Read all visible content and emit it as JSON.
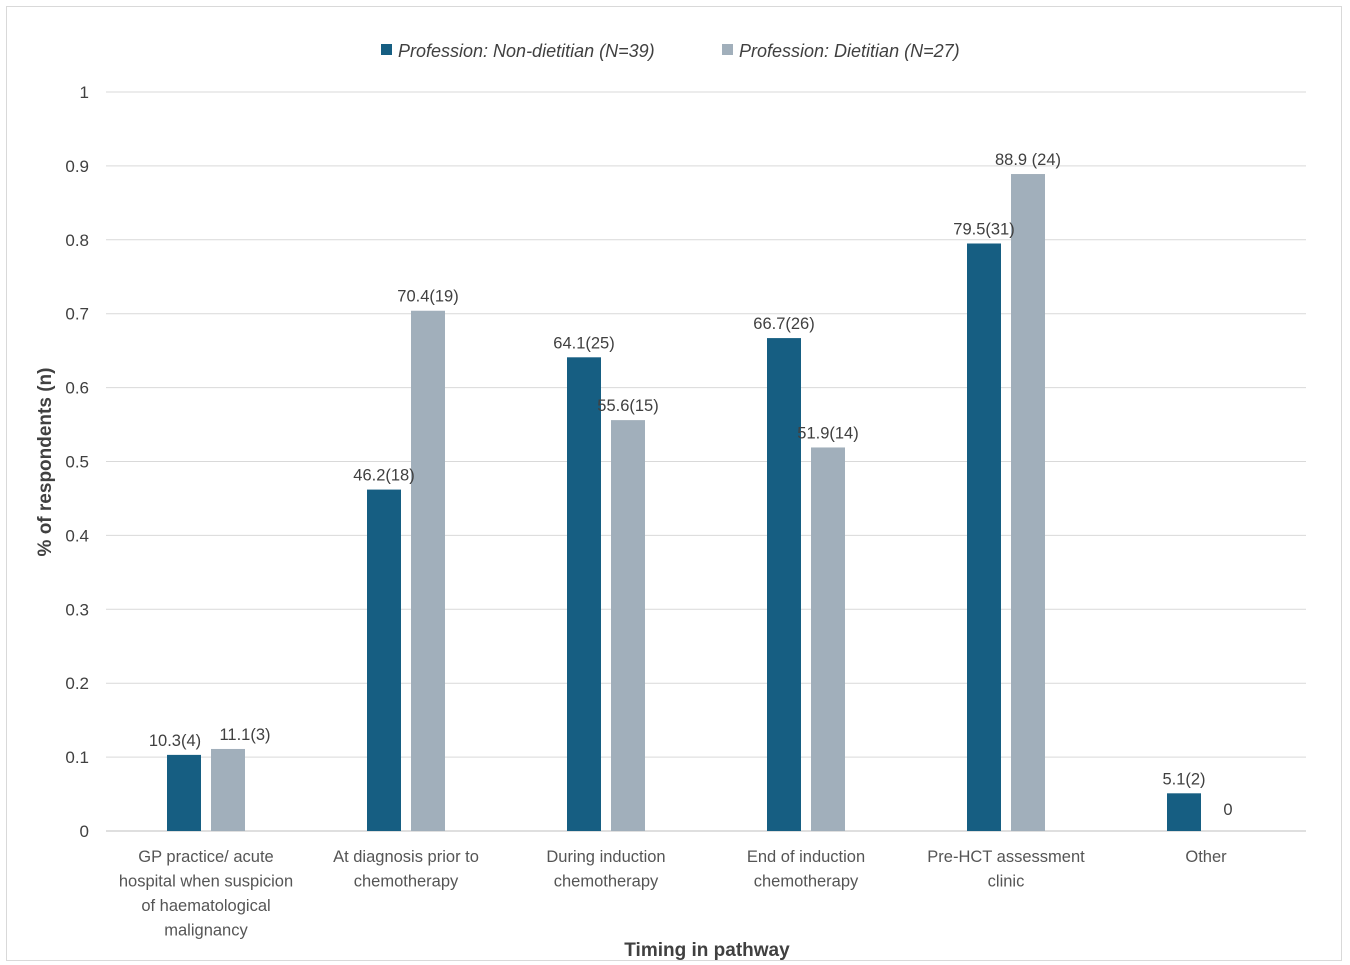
{
  "chart_data": {
    "type": "bar",
    "title": "",
    "xlabel": "Timing in pathway",
    "ylabel": "% of respondents (n)",
    "ylim": [
      0,
      1
    ],
    "yticks": [
      "0",
      "0.1",
      "0.2",
      "0.3",
      "0.4",
      "0.5",
      "0.6",
      "0.7",
      "0.8",
      "0.9",
      "1"
    ],
    "grid": true,
    "legend_position": "top",
    "categories": [
      [
        "GP practice/ acute",
        "hospital when suspicion",
        "of haematological",
        "malignancy"
      ],
      [
        "At diagnosis prior to",
        "chemotherapy"
      ],
      [
        "During induction",
        "chemotherapy"
      ],
      [
        "End of induction",
        "chemotherapy"
      ],
      [
        "Pre-HCT assessment",
        "clinic"
      ],
      [
        "Other"
      ]
    ],
    "series": [
      {
        "name": "Profession: Non-dietitian (N=39)",
        "color": "#165e82",
        "values": [
          0.103,
          0.462,
          0.641,
          0.667,
          0.795,
          0.051
        ],
        "labels": [
          "10.3(4)",
          "46.2(18)",
          "64.1(25)",
          "66.7(26)",
          "79.5(31)",
          "5.1(2)"
        ]
      },
      {
        "name": "Profession: Dietitian (N=27)",
        "color": "#a1afbb",
        "values": [
          0.111,
          0.704,
          0.556,
          0.519,
          0.889,
          0
        ],
        "labels": [
          "11.1(3)",
          "70.4(19)",
          "55.6(15)",
          "51.9(14)",
          "88.9 (24)",
          "0"
        ]
      }
    ]
  }
}
